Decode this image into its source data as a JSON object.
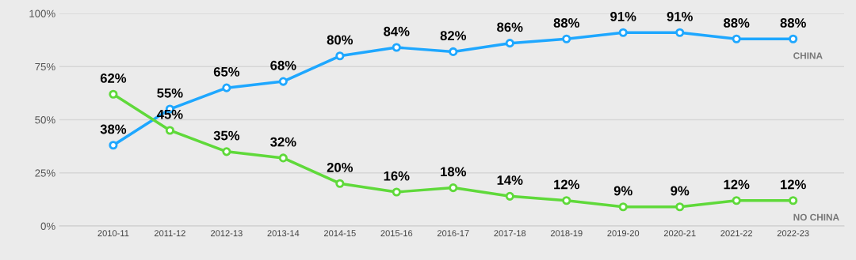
{
  "chart_data": {
    "type": "line",
    "categories": [
      "2010-11",
      "2011-12",
      "2012-13",
      "2013-14",
      "2014-15",
      "2015-16",
      "2016-17",
      "2017-18",
      "2018-19",
      "2019-20",
      "2020-21",
      "2021-22",
      "2022-23"
    ],
    "series": [
      {
        "name": "CHINA",
        "color": "#1ea7ff",
        "values": [
          38,
          55,
          65,
          68,
          80,
          84,
          82,
          86,
          88,
          91,
          91,
          88,
          88
        ],
        "value_labels": [
          "38%",
          "55%",
          "65%",
          "68%",
          "80%",
          "84%",
          "82%",
          "86%",
          "88%",
          "91%",
          "91%",
          "88%",
          "88%"
        ]
      },
      {
        "name": "NO CHINA",
        "color": "#5fd93a",
        "values": [
          62,
          45,
          35,
          32,
          20,
          16,
          18,
          14,
          12,
          9,
          9,
          12,
          12
        ],
        "value_labels": [
          "62%",
          "45%",
          "35%",
          "32%",
          "20%",
          "16%",
          "18%",
          "14%",
          "12%",
          "9%",
          "9%",
          "12%",
          "12%"
        ]
      }
    ],
    "ylim": [
      0,
      100
    ],
    "yticks": [
      {
        "value": 0,
        "label": "0%"
      },
      {
        "value": 25,
        "label": "25%"
      },
      {
        "value": 50,
        "label": "50%"
      },
      {
        "value": 75,
        "label": "75%"
      },
      {
        "value": 100,
        "label": "100%"
      }
    ],
    "grid": "y",
    "marker": "circle",
    "line_style": "solid",
    "legend": false
  }
}
